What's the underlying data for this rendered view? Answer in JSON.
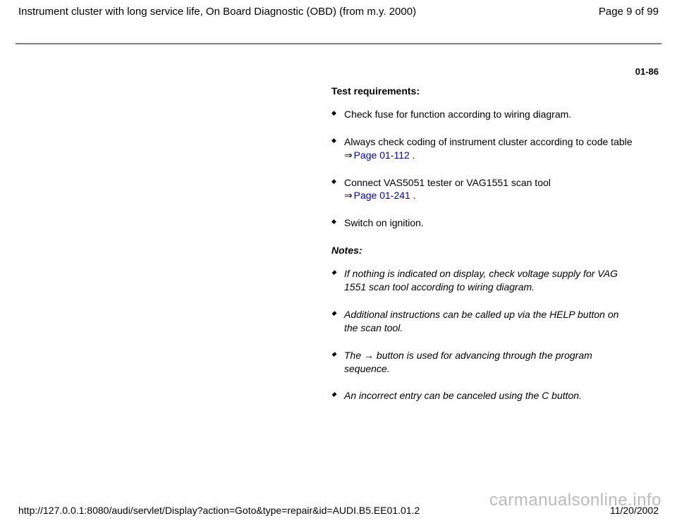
{
  "header": {
    "title": "Instrument cluster with long service life, On Board Diagnostic (OBD) (from m.y. 2000)",
    "page_indicator": "Page 9 of 99"
  },
  "page_code": "01-86",
  "sections": {
    "test_requirements_heading": "Test requirements:",
    "req1": "Check fuse for function according to wiring diagram.",
    "req2_a": "Always check coding of instrument cluster according to code table ",
    "req2_arrow": "⇒",
    "req2_link": " Page 01-112",
    "req2_tail": " .",
    "req3_a": "Connect VAS5051 tester or VAG1551 scan tool ",
    "req3_arrow": "⇒",
    "req3_link": " Page 01-241",
    "req3_tail": " .",
    "req4": "Switch on ignition.",
    "notes_heading": "Notes:",
    "note1": "If nothing is indicated on display, check voltage supply for VAG 1551 scan tool according to wiring diagram.",
    "note2": "Additional instructions can be called up via the HELP button on the scan tool.",
    "note3_a": "The ",
    "note3_arrow": "→",
    "note3_b": " button is used for advancing through the program sequence.",
    "note4": "An incorrect entry can be canceled using the C button."
  },
  "footer": {
    "url": "http://127.0.0.1:8080/audi/servlet/Display?action=Goto&type=repair&id=AUDI.B5.EE01.01.2",
    "date": "11/20/2002"
  },
  "watermark": "carmanualsonline.info",
  "colors": {
    "link": "#0000cc",
    "rule": "#808080",
    "text": "#000000",
    "watermark": "rgba(130,130,130,0.55)",
    "background": "#ffffff"
  }
}
